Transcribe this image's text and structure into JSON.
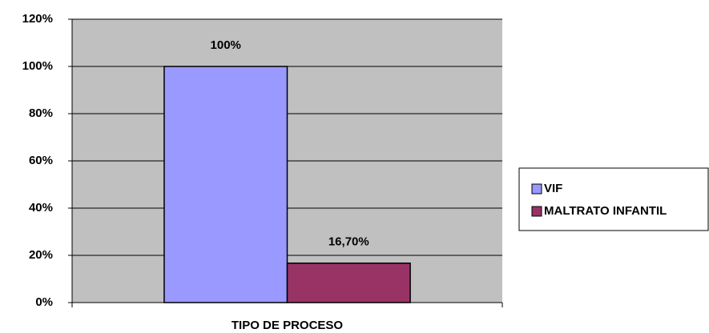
{
  "chart_data": {
    "type": "bar",
    "categories": [
      "TIPO DE PROCESO"
    ],
    "series": [
      {
        "name": "VIF",
        "color": "#9999ff",
        "values": [
          100
        ],
        "value_labels": [
          "100%"
        ]
      },
      {
        "name": "MALTRATO INFANTIL",
        "color": "#993366",
        "values": [
          16.7
        ],
        "value_labels": [
          "16,70%"
        ]
      }
    ],
    "ylim": [
      0,
      120
    ],
    "yticks": [
      {
        "value": 0,
        "label": "0%"
      },
      {
        "value": 20,
        "label": "20%"
      },
      {
        "value": 40,
        "label": "40%"
      },
      {
        "value": 60,
        "label": "60%"
      },
      {
        "value": 80,
        "label": "80%"
      },
      {
        "value": 100,
        "label": "100%"
      },
      {
        "value": 120,
        "label": "120%"
      }
    ],
    "grid": true,
    "plot_background": "#c0c0c0",
    "legend": "right"
  }
}
